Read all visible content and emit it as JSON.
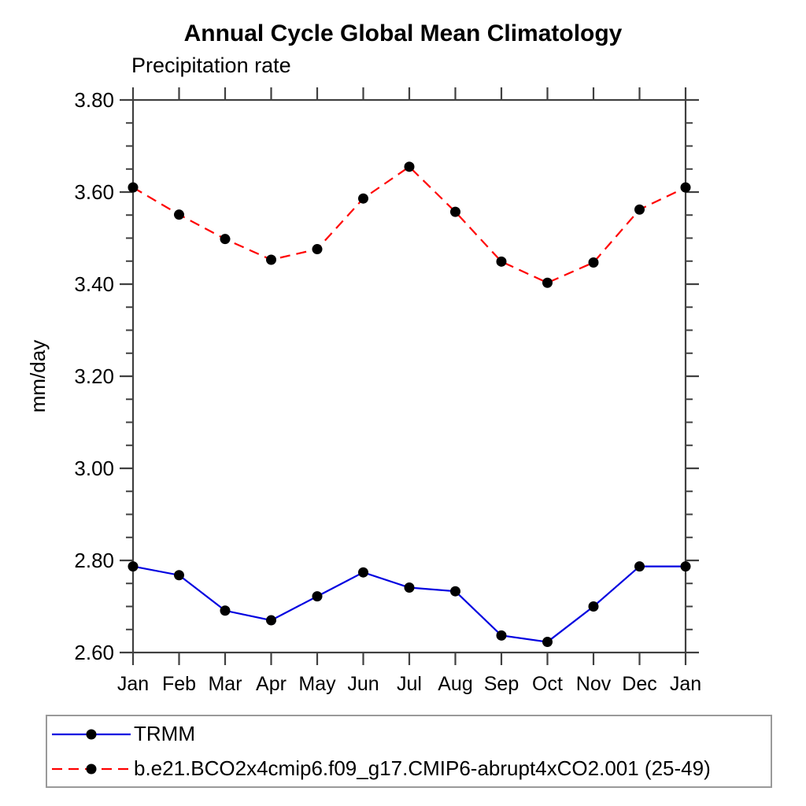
{
  "page": {
    "background": "#ffffff"
  },
  "chart_data": {
    "type": "line",
    "title": "Annual Cycle Global Mean Climatology",
    "subtitle": "Precipitation rate",
    "ylabel": "mm/day",
    "categories": [
      "Jan",
      "Feb",
      "Mar",
      "Apr",
      "May",
      "Jun",
      "Jul",
      "Aug",
      "Sep",
      "Oct",
      "Nov",
      "Dec",
      "Jan"
    ],
    "ylim": [
      2.6,
      3.8
    ],
    "ytick_step": 0.2,
    "ytick_minor_step": 0.05,
    "ytick_labels": [
      "2.60",
      "2.80",
      "3.00",
      "3.20",
      "3.40",
      "3.60",
      "3.80"
    ],
    "grid": false,
    "legend_position": "bottom-left-boxed",
    "axis_color": "#404040",
    "marker": "filled-circle",
    "marker_color": "#000000",
    "series": [
      {
        "name": "TRMM",
        "color": "#0000e0",
        "line_style": "solid",
        "values": [
          2.787,
          2.768,
          2.691,
          2.67,
          2.722,
          2.774,
          2.741,
          2.733,
          2.637,
          2.623,
          2.7,
          2.787,
          2.787
        ]
      },
      {
        "name": "b.e21.BCO2x4cmip6.f09_g17.CMIP6-abrupt4xCO2.001 (25-49)",
        "color": "#ff0000",
        "line_style": "dashed",
        "values": [
          3.61,
          3.551,
          3.498,
          3.453,
          3.476,
          3.586,
          3.655,
          3.557,
          3.449,
          3.403,
          3.447,
          3.562,
          3.61
        ]
      }
    ]
  }
}
